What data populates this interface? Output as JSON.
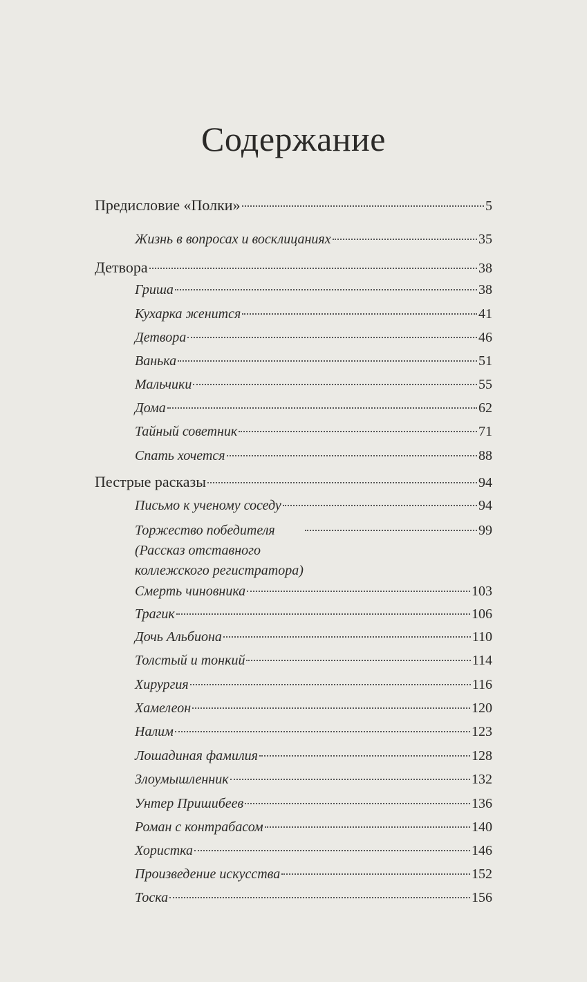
{
  "title": "Содержание",
  "entries": [
    {
      "level": 1,
      "label": "Предисловие «Полки»",
      "page": "5"
    },
    {
      "level": 2,
      "label": "Жизнь в вопросах и восклицаниях",
      "page": "35"
    },
    {
      "level": 1,
      "label": "Детвора",
      "page": "38"
    },
    {
      "level": 2,
      "label": "Гриша",
      "page": "38"
    },
    {
      "level": 2,
      "label": "Кухарка женится",
      "page": "41"
    },
    {
      "level": 2,
      "label": "Детвора",
      "page": "46"
    },
    {
      "level": 2,
      "label": "Ванька",
      "page": "51"
    },
    {
      "level": 2,
      "label": "Мальчики",
      "page": "55"
    },
    {
      "level": 2,
      "label": "Дома",
      "page": "62"
    },
    {
      "level": 2,
      "label": "Тайный советник",
      "page": "71"
    },
    {
      "level": 2,
      "label": "Спать хочется",
      "page": "88"
    },
    {
      "level": 1,
      "label": "Пестрые расказы",
      "page": "94"
    },
    {
      "level": 2,
      "label": "Письмо к ученому соседу",
      "page": "94"
    },
    {
      "level": 2,
      "label": "Торжество победителя\n(Рассказ отставного\nколлежского регистратора)",
      "page": "99"
    },
    {
      "level": 2,
      "label": "Смерть чиновника",
      "page": "103"
    },
    {
      "level": 2,
      "label": "Трагик",
      "page": "106"
    },
    {
      "level": 2,
      "label": "Дочь Альбиона",
      "page": "110"
    },
    {
      "level": 2,
      "label": "Толстый и тонкий",
      "page": "114"
    },
    {
      "level": 2,
      "label": "Хирургия",
      "page": "116"
    },
    {
      "level": 2,
      "label": "Хамелеон",
      "page": "120"
    },
    {
      "level": 2,
      "label": "Налим",
      "page": "123"
    },
    {
      "level": 2,
      "label": "Лошадиная фамилия",
      "page": "128"
    },
    {
      "level": 2,
      "label": "Злоумышленник",
      "page": "132"
    },
    {
      "level": 2,
      "label": "Унтер Пришибеев",
      "page": "136"
    },
    {
      "level": 2,
      "label": "Роман с контрабасом",
      "page": "140"
    },
    {
      "level": 2,
      "label": "Хористка",
      "page": "146"
    },
    {
      "level": 2,
      "label": "Произведение искусства",
      "page": "152"
    },
    {
      "level": 2,
      "label": "Тоска",
      "page": "156"
    }
  ]
}
